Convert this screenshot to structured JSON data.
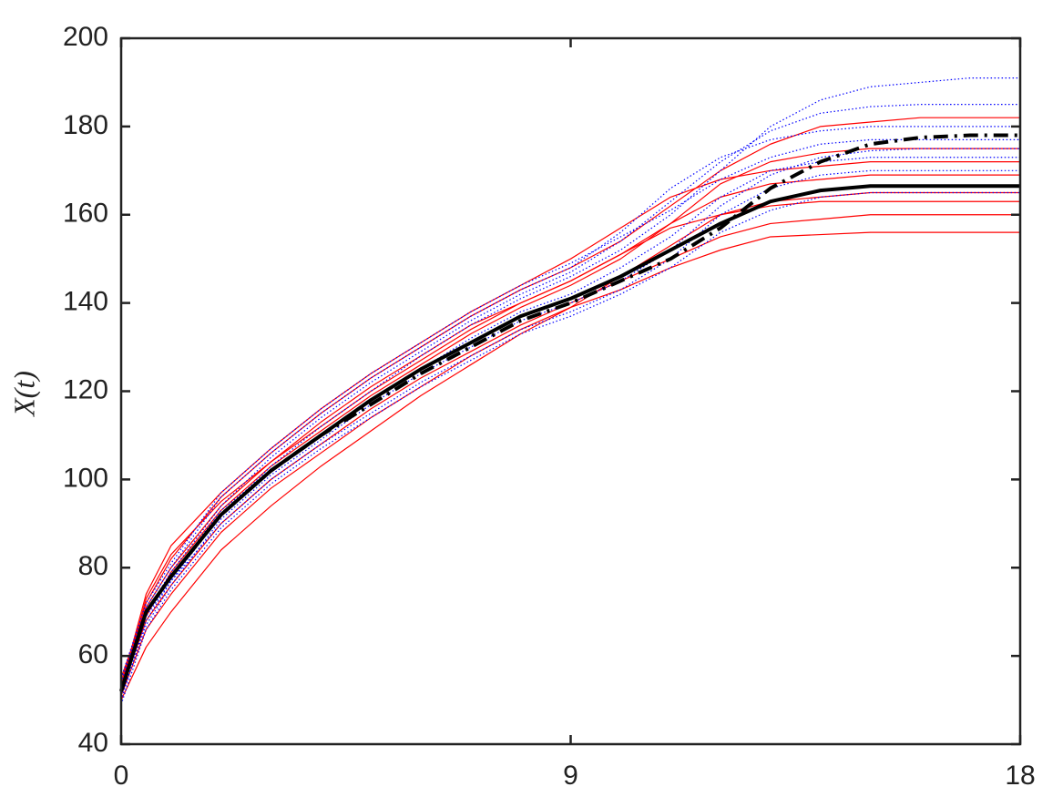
{
  "chart_data": {
    "type": "line",
    "ylabel": "X(t)",
    "x": [
      0,
      0.5,
      1,
      2,
      3,
      4,
      5,
      6,
      7,
      8,
      9,
      10,
      11,
      12,
      13,
      14,
      15,
      16,
      17,
      18
    ],
    "xlim": [
      0,
      18
    ],
    "xticks": [
      0,
      9,
      18
    ],
    "ylim": [
      40,
      200
    ],
    "yticks": [
      40,
      60,
      80,
      100,
      120,
      140,
      160,
      180,
      200
    ],
    "series": [
      {
        "color": "#ff0000",
        "style": "solid",
        "width": 1.2,
        "values": [
          54,
          72,
          82,
          96,
          106,
          115,
          123,
          130,
          137,
          143,
          148,
          154,
          162,
          170,
          176,
          180,
          181,
          182,
          182,
          182
        ]
      },
      {
        "color": "#ff0000",
        "style": "solid",
        "width": 1.2,
        "values": [
          53,
          74,
          85,
          97,
          107,
          116,
          124,
          131,
          138,
          144,
          150,
          157,
          164,
          168,
          170,
          171,
          172,
          172,
          172,
          172
        ]
      },
      {
        "color": "#ff0000",
        "style": "solid",
        "width": 1.2,
        "values": [
          50,
          62,
          70,
          84,
          94,
          103,
          111,
          119,
          126,
          133,
          139,
          146,
          153,
          160,
          163,
          164,
          165,
          165,
          165,
          165
        ]
      },
      {
        "color": "#ff0000",
        "style": "solid",
        "width": 1.2,
        "values": [
          52,
          68,
          76,
          90,
          100,
          108,
          116,
          123,
          129,
          135,
          140,
          145,
          150,
          155,
          158,
          159,
          160,
          160,
          160,
          160
        ]
      },
      {
        "color": "#ff0000",
        "style": "solid",
        "width": 1.2,
        "values": [
          51,
          66,
          74,
          88,
          98,
          106,
          114,
          121,
          128,
          134,
          139,
          143,
          148,
          152,
          155,
          155.5,
          156,
          156,
          156,
          156
        ]
      },
      {
        "color": "#ff0000",
        "style": "solid",
        "width": 1.2,
        "values": [
          55,
          71,
          80,
          94,
          104,
          112,
          120,
          127,
          134,
          140,
          145,
          151,
          158,
          164,
          167,
          168,
          169,
          169,
          169,
          169
        ]
      },
      {
        "color": "#ff0000",
        "style": "solid",
        "width": 1.2,
        "values": [
          53,
          69,
          79,
          93,
          103,
          111,
          119,
          126,
          133,
          139,
          144,
          150,
          158,
          167,
          172,
          174,
          175,
          175,
          175,
          175
        ]
      },
      {
        "color": "#ff0000",
        "style": "solid",
        "width": 1.2,
        "values": [
          52,
          73,
          83,
          95,
          104,
          113,
          121,
          128,
          135,
          140,
          145,
          151,
          157,
          160,
          162,
          163,
          163,
          163,
          163,
          163
        ]
      },
      {
        "color": "#0000ff",
        "style": "dotted",
        "width": 1.2,
        "values": [
          50,
          68,
          77,
          92,
          103,
          112,
          120,
          128,
          135,
          141,
          146,
          152,
          160,
          170,
          180,
          186,
          189,
          190,
          191,
          191
        ]
      },
      {
        "color": "#0000ff",
        "style": "dotted",
        "width": 1.2,
        "values": [
          53,
          70,
          79,
          94,
          105,
          114,
          122,
          129,
          136,
          142,
          147,
          154,
          163,
          172,
          179,
          183,
          184.5,
          185,
          185,
          185
        ]
      },
      {
        "color": "#0000ff",
        "style": "dotted",
        "width": 1.2,
        "values": [
          54,
          71,
          80,
          96,
          106,
          115,
          123,
          130,
          137,
          143,
          148,
          156,
          166,
          173,
          177,
          179,
          180,
          180,
          180,
          180
        ]
      },
      {
        "color": "#0000ff",
        "style": "dotted",
        "width": 1.2,
        "values": [
          51,
          67,
          76,
          91,
          101,
          109,
          117,
          124,
          130,
          136,
          140,
          145,
          152,
          162,
          169,
          173,
          174.5,
          175,
          175,
          175
        ]
      },
      {
        "color": "#0000ff",
        "style": "dotted",
        "width": 1.2,
        "values": [
          52,
          69,
          77,
          90,
          100,
          108,
          115,
          122,
          128,
          134,
          138,
          143,
          150,
          160,
          166,
          169,
          170,
          170,
          170,
          170
        ]
      },
      {
        "color": "#0000ff",
        "style": "dotted",
        "width": 1.2,
        "values": [
          55,
          72,
          81,
          97,
          107,
          116,
          124,
          131,
          138,
          144,
          149,
          155,
          161,
          168,
          173,
          176,
          177,
          177,
          177,
          177
        ]
      },
      {
        "color": "#0000ff",
        "style": "dotted",
        "width": 1.2,
        "values": [
          49,
          66,
          75,
          89,
          99,
          107,
          114,
          121,
          127,
          133,
          137,
          142,
          148,
          156,
          161,
          164,
          165,
          165,
          165,
          165
        ]
      },
      {
        "color": "#0000ff",
        "style": "dotted",
        "width": 1.2,
        "values": [
          52,
          70,
          78,
          93,
          102,
          110,
          118,
          125,
          132,
          138,
          142,
          148,
          155,
          164,
          170,
          172,
          173,
          173,
          173,
          173
        ]
      },
      {
        "color": "#000000",
        "style": "solid",
        "width": 4,
        "values": [
          52,
          70,
          78,
          92,
          102,
          110,
          118,
          125,
          131,
          137,
          141,
          146,
          152,
          158,
          163,
          165.5,
          166.5,
          166.5,
          166.5,
          166.5
        ]
      },
      {
        "color": "#000000",
        "style": "dashdot",
        "width": 4,
        "values": [
          52,
          70,
          78,
          92,
          102,
          110,
          117,
          124,
          130,
          136,
          140,
          145,
          150,
          157,
          166,
          172,
          176,
          177.5,
          178,
          178
        ]
      }
    ]
  }
}
